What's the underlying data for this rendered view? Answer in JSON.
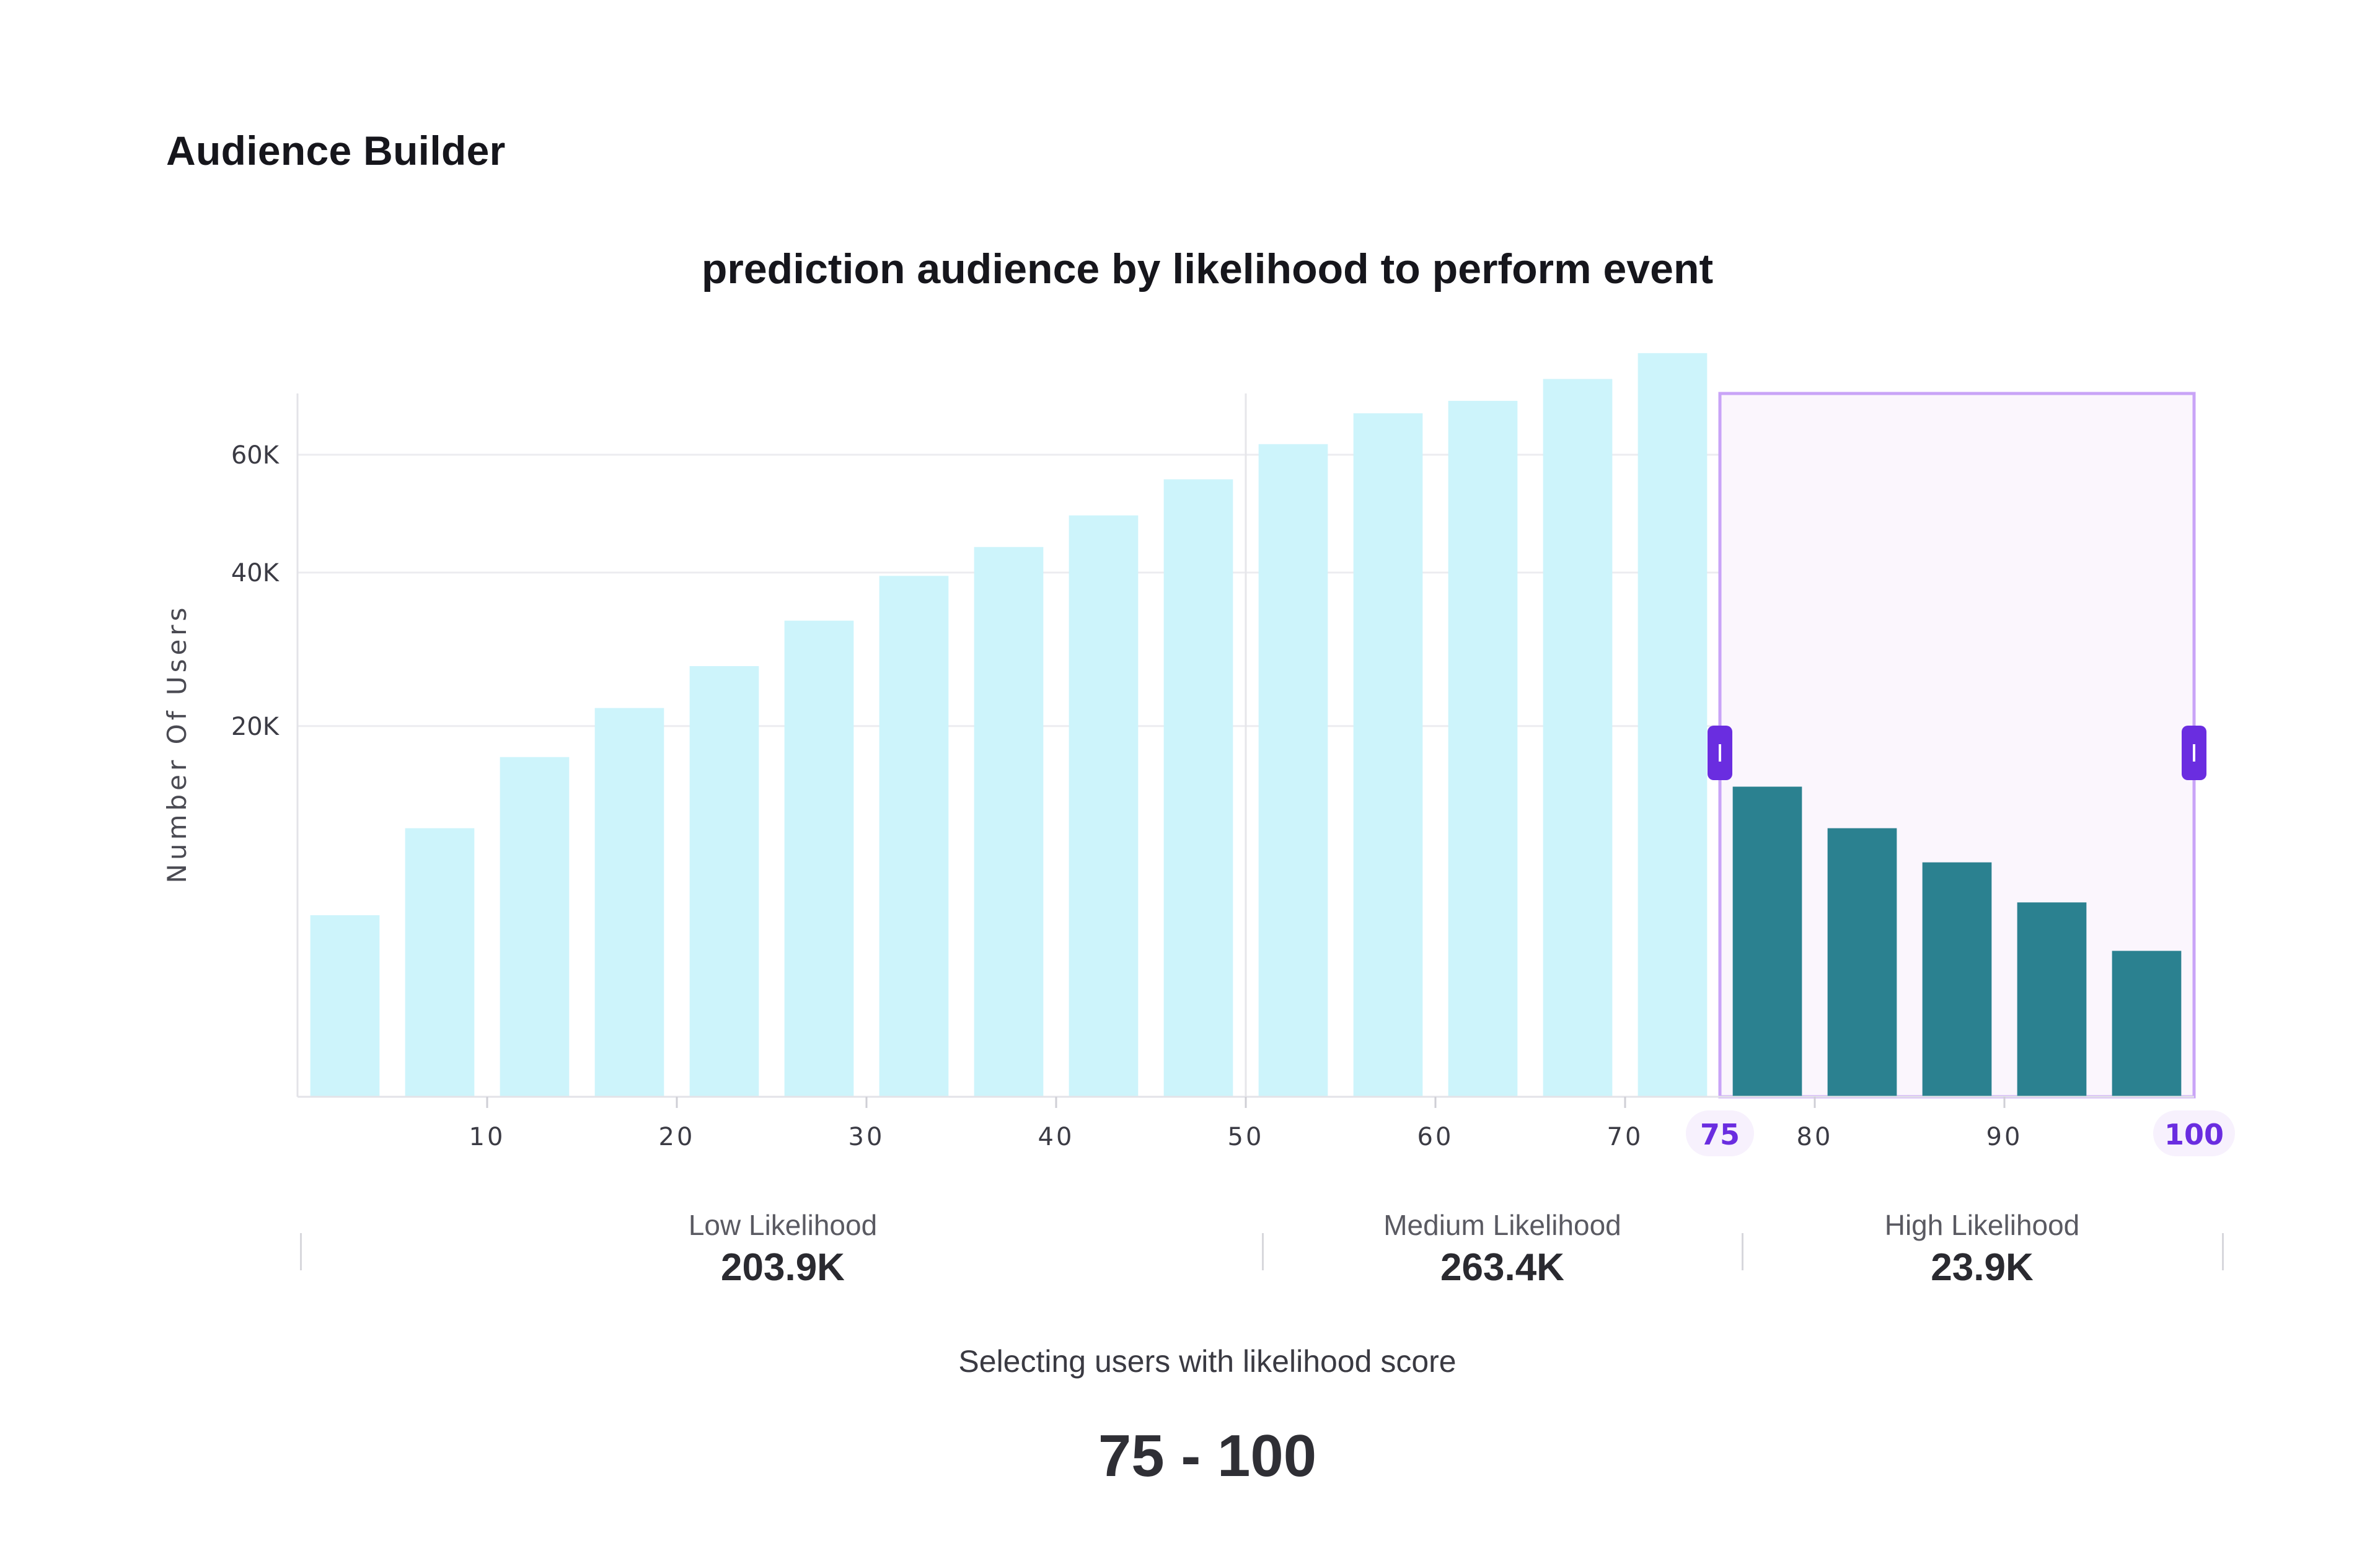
{
  "page": {
    "title": "Audience Builder"
  },
  "chart_data": {
    "type": "bar",
    "title": "prediction audience by likelihood to perform event",
    "xlabel": "",
    "ylabel": "Number Of Users",
    "x_ticks": [
      10,
      20,
      30,
      40,
      50,
      60,
      70,
      80,
      90
    ],
    "y_ticks": [
      {
        "value": 20000,
        "label": "20K"
      },
      {
        "value": 40000,
        "label": "40K"
      },
      {
        "value": 60000,
        "label": "60K"
      }
    ],
    "xlim": [
      0,
      100
    ],
    "y_scale": "sqrt",
    "ylim": [
      0,
      72000
    ],
    "bin_width": 5,
    "series": [
      {
        "values": [
          4800,
          10500,
          16800,
          22000,
          27000,
          33000,
          39500,
          44000,
          49200,
          55500,
          62000,
          68000,
          70500,
          75000,
          80500,
          14000,
          10500,
          8000,
          5500,
          3100
        ]
      }
    ],
    "bin_starts": [
      0,
      5,
      10,
      15,
      20,
      25,
      30,
      35,
      40,
      45,
      50,
      55,
      60,
      65,
      70,
      75,
      80,
      85,
      90,
      95
    ],
    "colors": {
      "unselected": "#cdf4fb",
      "selected": "#2b8190",
      "selection_box": "#c9a4f7",
      "handle": "#6a2de0"
    },
    "selection": {
      "start": 75,
      "end": 100,
      "start_label": "75",
      "end_label": "100"
    },
    "reference_line_x": 50
  },
  "segments": [
    {
      "label": "Low Likelihood",
      "value": "203.9K"
    },
    {
      "label": "Medium Likelihood",
      "value": "263.4K"
    },
    {
      "label": "High Likelihood",
      "value": "23.9K"
    }
  ],
  "selection_summary": {
    "caption": "Selecting users with likelihood score",
    "range": "75 - 100"
  }
}
